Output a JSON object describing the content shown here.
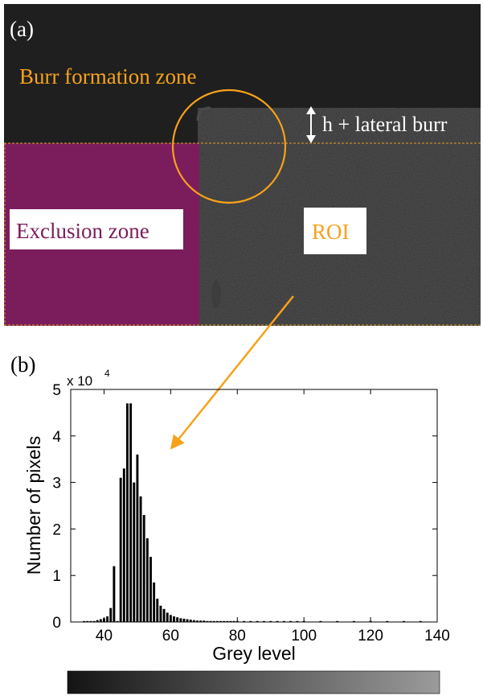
{
  "panel_a": {
    "label": "(a)",
    "burr_zone_label": "Burr formation zone",
    "height_annotation": "h + lateral burr",
    "exclusion_label": "Exclusion zone",
    "roi_label": "ROI"
  },
  "panel_b": {
    "label": "(b)",
    "exponent_base": "x 10",
    "exponent_power": "4"
  },
  "colors": {
    "orange": "#f7a21b",
    "exclusion": "#7b1d5c",
    "background_dark": "#1f1f1f",
    "roi_texture": "#2c2c2c",
    "bar": "#000000"
  },
  "chart_data": {
    "type": "bar",
    "xlabel": "Grey level",
    "ylabel": "Number of pixels",
    "xlim": [
      30,
      140
    ],
    "ylim": [
      0,
      5
    ],
    "y_scale_note": "x 10^4",
    "xticks": [
      40,
      60,
      80,
      100,
      120,
      140
    ],
    "yticks": [
      0,
      1,
      2,
      3,
      4,
      5
    ],
    "x": [
      34,
      35,
      36,
      37,
      38,
      39,
      40,
      41,
      42,
      43,
      44,
      45,
      46,
      47,
      48,
      49,
      50,
      51,
      52,
      53,
      54,
      55,
      56,
      57,
      58,
      59,
      60,
      61,
      62,
      63,
      64,
      65,
      66,
      67,
      68,
      69,
      70,
      71,
      72,
      73,
      74,
      75,
      76,
      77,
      78,
      79,
      80,
      82,
      84,
      86,
      88,
      90,
      92,
      94,
      96,
      98,
      100,
      105,
      110,
      115,
      120,
      125,
      130,
      135
    ],
    "values": [
      0.01,
      0.01,
      0.02,
      0.02,
      0.04,
      0.06,
      0.08,
      0.12,
      0.3,
      1.2,
      0.02,
      3.1,
      3.3,
      4.7,
      4.7,
      3.0,
      3.6,
      2.7,
      2.3,
      1.8,
      1.4,
      0.85,
      0.5,
      0.35,
      0.28,
      0.2,
      0.15,
      0.12,
      0.1,
      0.08,
      0.07,
      0.06,
      0.05,
      0.04,
      0.03,
      0.03,
      0.03,
      0.02,
      0.02,
      0.02,
      0.02,
      0.01,
      0.01,
      0.01,
      0.01,
      0.01,
      0.01,
      0.01,
      0.01,
      0.01,
      0.01,
      0.01,
      0.01,
      0.01,
      0.01,
      0.01,
      0.01,
      0.01,
      0.01,
      0.01,
      0.01,
      0.01,
      0.01,
      0.01
    ]
  }
}
